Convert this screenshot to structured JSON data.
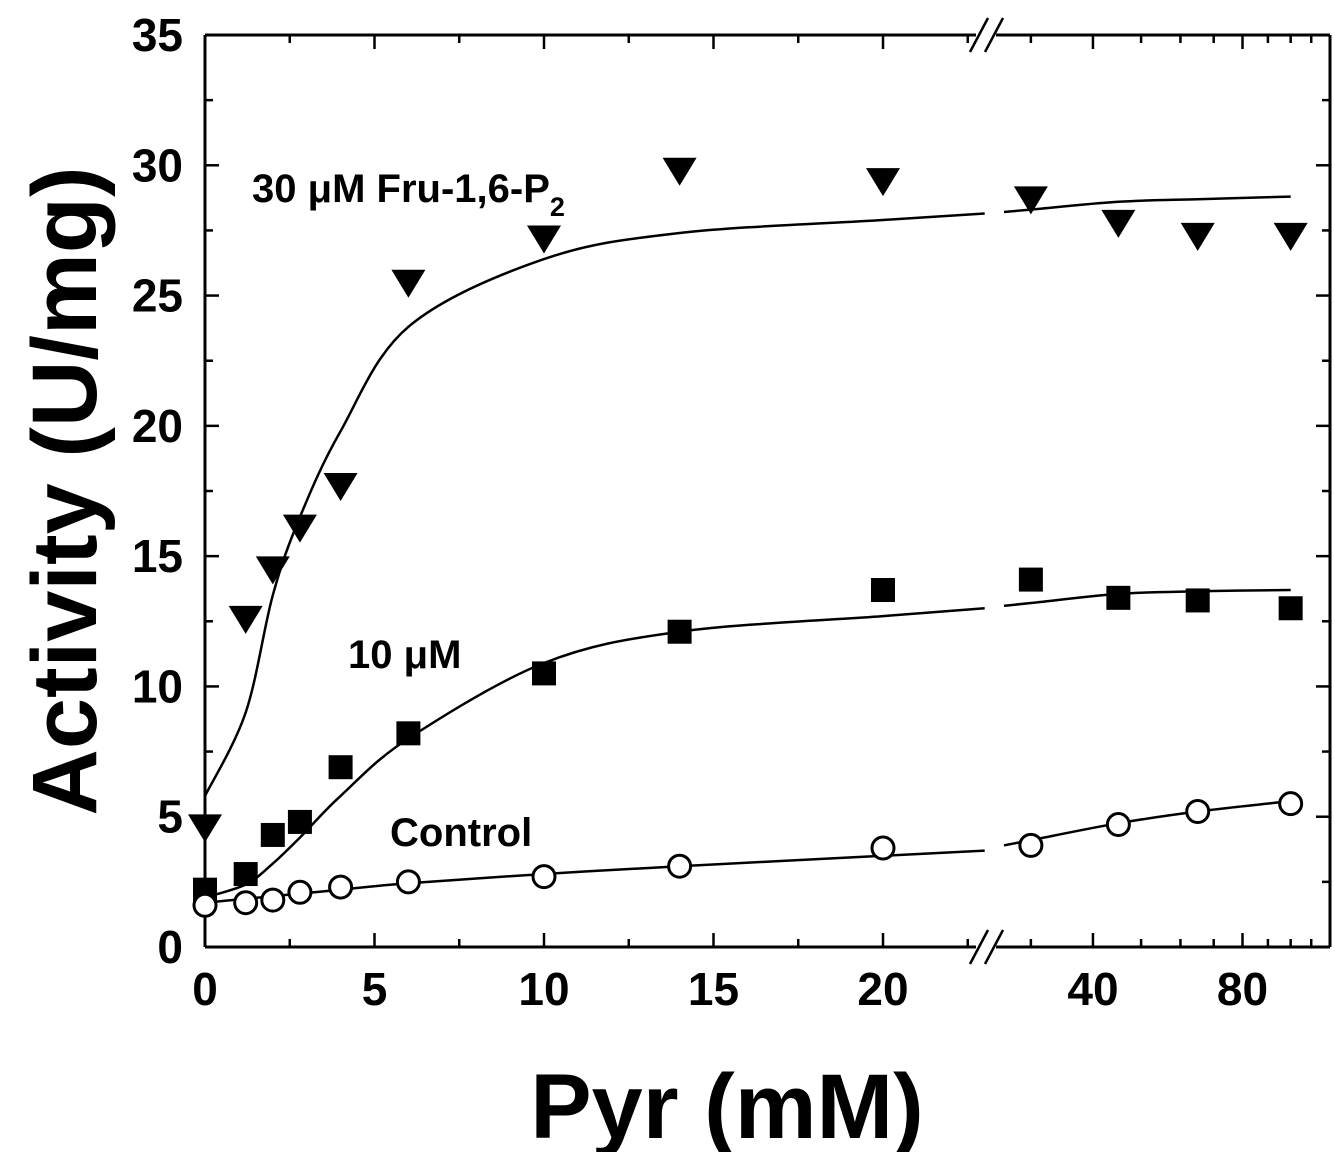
{
  "chart_data": {
    "type": "scatter",
    "xlabel": "Pyr (mM)",
    "ylabel": "Activity (U/mg)",
    "ylim": [
      0,
      35
    ],
    "x_axis": {
      "broken": true,
      "segments": [
        {
          "scale": "linear",
          "range": [
            0,
            23
          ],
          "tick_labels": [
            "0",
            "5",
            "10",
            "15",
            "20"
          ],
          "tick_values": [
            0,
            5,
            10,
            15,
            20
          ]
        },
        {
          "scale": "log",
          "range": [
            26,
            120
          ],
          "tick_labels": [
            "40",
            "80"
          ],
          "tick_values": [
            40,
            80
          ]
        }
      ]
    },
    "y_ticks": [
      "0",
      "5",
      "10",
      "15",
      "20",
      "25",
      "30",
      "35"
    ],
    "series": [
      {
        "annotation_parts": [
          "30 μM Fru-1,6-P",
          "2"
        ],
        "marker": "triangle-down-filled",
        "x": [
          0,
          1.2,
          2,
          2.8,
          4,
          6,
          10,
          14,
          20,
          30,
          45,
          65,
          100
        ],
        "y": [
          4.5,
          12.5,
          14.4,
          16.0,
          17.6,
          25.4,
          27.1,
          29.7,
          29.3,
          28.6,
          27.7,
          27.2,
          27.2
        ],
        "fit_y": [
          5.8,
          9.0,
          13.5,
          16.5,
          19.8,
          23.8,
          26.4,
          27.4,
          27.9,
          28.3,
          28.6,
          28.7,
          28.8
        ]
      },
      {
        "annotation": "10 μM",
        "marker": "square-filled",
        "x": [
          0,
          1.2,
          2,
          2.8,
          4,
          6,
          10,
          14,
          20,
          30,
          45,
          65,
          100
        ],
        "y": [
          2.2,
          2.8,
          4.3,
          4.8,
          6.9,
          8.2,
          10.5,
          12.1,
          13.7,
          14.1,
          13.4,
          13.3,
          13.0
        ],
        "fit_y": [
          1.9,
          2.4,
          3.2,
          4.2,
          5.8,
          8.0,
          10.9,
          12.1,
          12.7,
          13.2,
          13.55,
          13.65,
          13.7
        ]
      },
      {
        "annotation": "Control",
        "marker": "circle-open",
        "x": [
          0,
          1.2,
          2,
          2.8,
          4,
          6,
          10,
          14,
          20,
          30,
          45,
          65,
          100
        ],
        "y": [
          1.6,
          1.7,
          1.8,
          2.1,
          2.3,
          2.5,
          2.7,
          3.1,
          3.8,
          3.9,
          4.7,
          5.2,
          5.5
        ],
        "fit_y": [
          1.7,
          1.85,
          1.95,
          2.05,
          2.2,
          2.45,
          2.8,
          3.1,
          3.5,
          4.1,
          4.75,
          5.2,
          5.6
        ]
      }
    ]
  }
}
